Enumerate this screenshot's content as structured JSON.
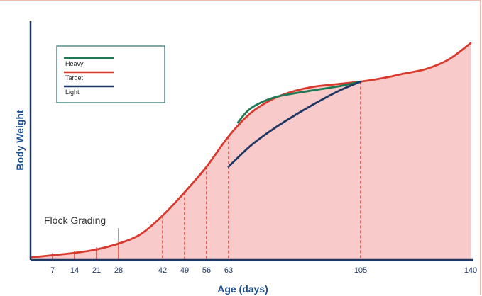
{
  "chart_data": {
    "type": "area",
    "xlabel": "Age (days)",
    "ylabel": "Body Weight",
    "xticks": [
      7,
      14,
      21,
      28,
      42,
      49,
      56,
      63,
      105,
      140
    ],
    "xlim": [
      0,
      140
    ],
    "ylim": [
      0,
      100
    ],
    "grading_days": [
      7,
      14,
      21,
      28,
      42,
      49,
      56,
      63,
      105
    ],
    "annotation": {
      "text": "Flock Grading",
      "day": 28
    },
    "legend": {
      "placement": "top-left",
      "entries": [
        "Heavy",
        "Target",
        "Light"
      ]
    },
    "series": [
      {
        "name": "Target",
        "color": "#d83a2e",
        "fill": "#f8caca",
        "x": [
          0,
          7,
          14,
          21,
          28,
          35,
          42,
          49,
          56,
          63,
          70,
          77,
          84,
          91,
          98,
          105,
          112,
          119,
          126,
          133,
          140
        ],
        "y": [
          1,
          2,
          3,
          4.5,
          7,
          11,
          19,
          29,
          40,
          53,
          63,
          69,
          72.5,
          74.5,
          75.5,
          76.5,
          78,
          80,
          82,
          86,
          93
        ]
      },
      {
        "name": "Heavy",
        "color": "#1e7a55",
        "x": [
          66,
          70,
          77,
          84,
          91,
          98,
          105
        ],
        "y": [
          59,
          65,
          69.5,
          71.5,
          73,
          74.5,
          76.5
        ]
      },
      {
        "name": "Light",
        "color": "#1f3763",
        "x": [
          63,
          70,
          77,
          84,
          91,
          98,
          105
        ],
        "y": [
          40,
          49,
          56,
          62,
          67.5,
          72.5,
          76.5
        ]
      }
    ]
  }
}
